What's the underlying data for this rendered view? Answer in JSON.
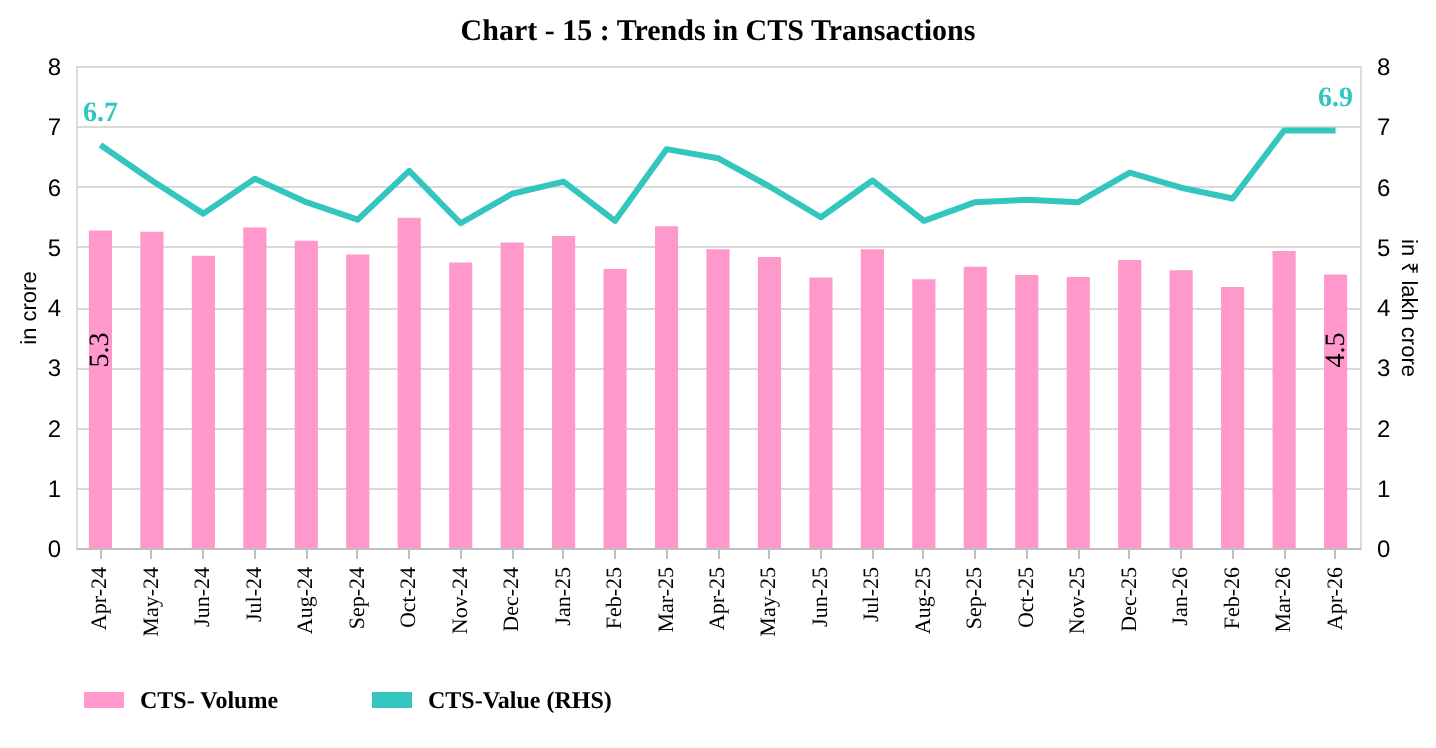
{
  "chart_data": {
    "type": "bar",
    "title": "Chart - 15 : Trends in CTS Transactions",
    "ylabel": "in crore",
    "y2label": "in ₹ lakh crore",
    "categories": [
      "Apr-24",
      "May-24",
      "Jun-24",
      "Jul-24",
      "Aug-24",
      "Sep-24",
      "Oct-24",
      "Nov-24",
      "Dec-24",
      "Jan-25",
      "Feb-25",
      "Mar-25",
      "Apr-25",
      "May-25",
      "Jun-25",
      "Jul-25",
      "Aug-25",
      "Sep-25",
      "Oct-25",
      "Nov-25",
      "Dec-25",
      "Jan-26",
      "Feb-26",
      "Mar-26",
      "Apr-26"
    ],
    "series": [
      {
        "name": "CTS- Volume",
        "color": "#ff99cc",
        "values": [
          5.27,
          5.25,
          4.85,
          5.32,
          5.1,
          4.87,
          5.48,
          4.74,
          5.07,
          5.18,
          4.63,
          5.34,
          4.96,
          4.83,
          4.49,
          4.96,
          4.46,
          4.67,
          4.53,
          4.5,
          4.78,
          4.61,
          4.33,
          4.93,
          4.54
        ],
        "value_labels": [
          "5.3",
          null,
          null,
          null,
          null,
          null,
          null,
          null,
          null,
          null,
          null,
          null,
          null,
          null,
          null,
          null,
          null,
          null,
          null,
          null,
          null,
          null,
          null,
          null,
          "4.5"
        ]
      },
      {
        "name": "CTS-Value (RHS)",
        "type": "line",
        "axis": "y2",
        "color": "#33c6bf",
        "values": [
          6.69,
          6.1,
          5.55,
          6.13,
          5.74,
          5.45,
          6.26,
          5.39,
          5.88,
          6.08,
          5.43,
          6.62,
          6.47,
          6.0,
          5.49,
          6.1,
          5.43,
          5.74,
          5.78,
          5.74,
          6.23,
          5.98,
          5.8,
          6.93,
          6.93
        ],
        "value_labels": [
          "6.7",
          null,
          null,
          null,
          null,
          null,
          null,
          null,
          null,
          null,
          null,
          null,
          null,
          null,
          null,
          null,
          null,
          null,
          null,
          null,
          null,
          null,
          null,
          null,
          "6.9"
        ]
      }
    ],
    "ylim": [
      0,
      8
    ],
    "yticks": [
      0,
      1,
      2,
      3,
      4,
      5,
      6,
      7,
      8
    ],
    "y2lim": [
      0,
      8
    ],
    "y2ticks": [
      0,
      1,
      2,
      3,
      4,
      5,
      6,
      7,
      8
    ],
    "grid": "y",
    "legend": "bottom",
    "marker": "none"
  }
}
